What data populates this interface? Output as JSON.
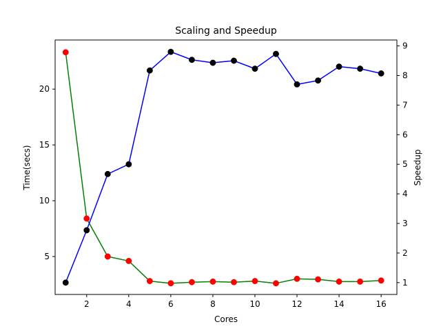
{
  "chart_data": {
    "type": "line",
    "title": "Scaling and Speedup",
    "xlabel": "Cores",
    "ylabel_left": "Time(secs)",
    "ylabel_right": "Speedup",
    "x": [
      1,
      2,
      3,
      4,
      5,
      6,
      7,
      8,
      9,
      10,
      11,
      12,
      13,
      14,
      15,
      16
    ],
    "xlim": [
      0.5,
      16.75
    ],
    "ylim_left": [
      1.6,
      24.4
    ],
    "ylim_right": [
      0.6,
      9.2
    ],
    "xticks": [
      2,
      4,
      6,
      8,
      10,
      12,
      14,
      16
    ],
    "yticks_left": [
      5,
      10,
      15,
      20
    ],
    "yticks_right": [
      1,
      2,
      3,
      4,
      5,
      6,
      7,
      8,
      9
    ],
    "grid": false,
    "series": [
      {
        "axis": "left",
        "line_color": "#008000",
        "marker_color": "#ff0000",
        "values": [
          23.3,
          8.4,
          5.0,
          4.6,
          2.8,
          2.6,
          2.7,
          2.75,
          2.7,
          2.8,
          2.6,
          3.0,
          2.95,
          2.75,
          2.75,
          2.85
        ]
      },
      {
        "axis": "right",
        "line_color": "#0000ff",
        "marker_color": "#000000",
        "values": [
          1.0,
          2.77,
          4.67,
          5.0,
          8.17,
          8.8,
          8.53,
          8.43,
          8.5,
          8.23,
          8.73,
          7.7,
          7.83,
          8.3,
          8.23,
          8.07
        ]
      }
    ]
  }
}
